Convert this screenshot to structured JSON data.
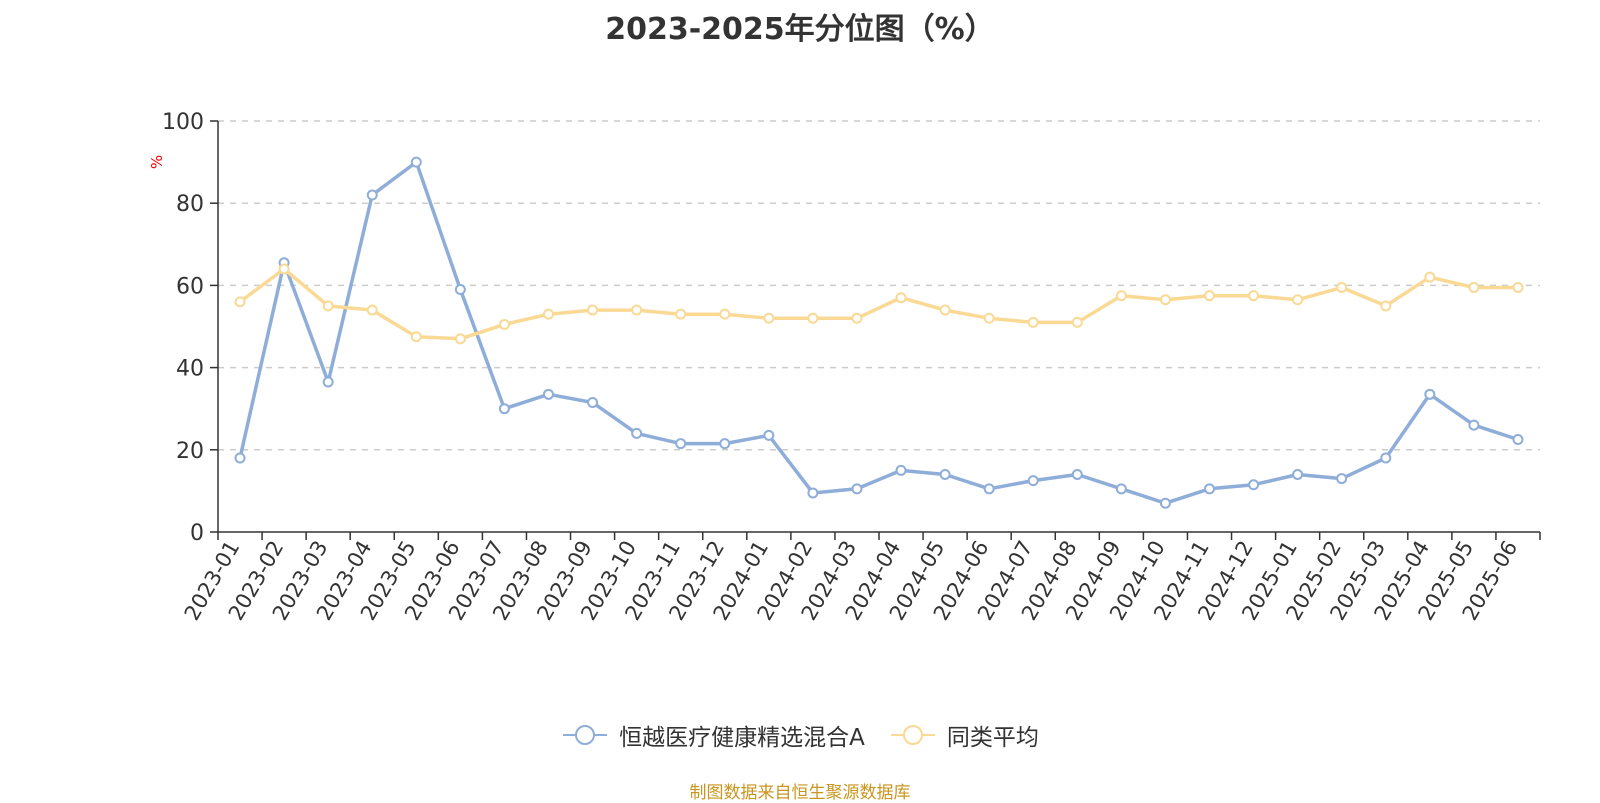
{
  "chart_data": {
    "type": "line",
    "title": "2023-2025年分位图（%）",
    "ylabel": "%",
    "ylim": [
      0,
      100
    ],
    "yticks": [
      0,
      20,
      40,
      60,
      80,
      100
    ],
    "grid": true,
    "legend_position": "bottom",
    "categories": [
      "2023-01",
      "2023-02",
      "2023-03",
      "2023-04",
      "2023-05",
      "2023-06",
      "2023-07",
      "2023-08",
      "2023-09",
      "2023-10",
      "2023-11",
      "2023-12",
      "2024-01",
      "2024-02",
      "2024-03",
      "2024-04",
      "2024-05",
      "2024-06",
      "2024-07",
      "2024-08",
      "2024-09",
      "2024-10",
      "2024-11",
      "2024-12",
      "2025-01",
      "2025-02",
      "2025-03",
      "2025-04",
      "2025-05",
      "2025-06"
    ],
    "series": [
      {
        "name": "恒越医疗健康精选混合A",
        "color": "#8eadd9",
        "values": [
          18,
          65.5,
          36.5,
          82,
          90,
          59,
          30,
          33.5,
          31.5,
          24,
          21.5,
          21.5,
          23.5,
          9.5,
          10.5,
          15,
          14,
          10.5,
          12.5,
          14,
          10.5,
          7,
          10.5,
          11.5,
          14,
          13,
          18,
          33.5,
          26,
          22.5
        ]
      },
      {
        "name": "同类平均",
        "color": "#fad995",
        "values": [
          56,
          64,
          55,
          54,
          47.5,
          47,
          50.5,
          53,
          54,
          54,
          53,
          53,
          52,
          52,
          52,
          57,
          54,
          52,
          51,
          51,
          57.5,
          56.5,
          57.5,
          57.5,
          56.5,
          59.5,
          55,
          62,
          59.5,
          59.5
        ]
      }
    ]
  },
  "source_note": "制图数据来自恒生聚源数据库",
  "colors": {
    "axis": "#333333",
    "grid": "#cccccc",
    "ylabel": "#ff0000",
    "source": "#c8961e"
  }
}
